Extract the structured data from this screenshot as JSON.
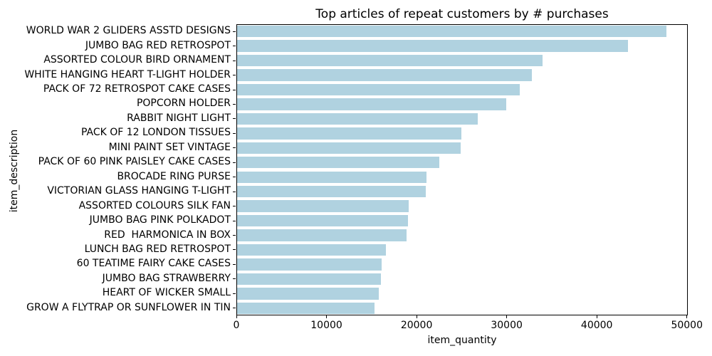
{
  "figure": {
    "background": "#ffffff",
    "text_color": "#000000",
    "spine_color": "#000000"
  },
  "chart_data": {
    "type": "bar",
    "orientation": "horizontal",
    "title": "Top articles of repeat customers by # purchases",
    "xlabel": "item_quantity",
    "ylabel": "item_description",
    "xlim": [
      0,
      50100
    ],
    "xticks": [
      0,
      10000,
      20000,
      30000,
      40000,
      50000
    ],
    "xtick_labels": [
      "0",
      "10000",
      "20000",
      "30000",
      "40000",
      "50000"
    ],
    "grid": false,
    "legend_position": "none",
    "bar_color": "#b0d2e0",
    "categories": [
      "WORLD WAR 2 GLIDERS ASSTD DESIGNS",
      "JUMBO BAG RED RETROSPOT",
      "ASSORTED COLOUR BIRD ORNAMENT",
      "WHITE HANGING HEART T-LIGHT HOLDER",
      "PACK OF 72 RETROSPOT CAKE CASES",
      "POPCORN HOLDER",
      "RABBIT NIGHT LIGHT",
      "PACK OF 12 LONDON TISSUES",
      "MINI PAINT SET VINTAGE",
      "PACK OF 60 PINK PAISLEY CAKE CASES",
      "BROCADE RING PURSE",
      "VICTORIAN GLASS HANGING T-LIGHT",
      "ASSORTED COLOURS SILK FAN",
      "JUMBO BAG PINK POLKADOT",
      "RED  HARMONICA IN BOX",
      "LUNCH BAG RED RETROSPOT",
      "60 TEATIME FAIRY CAKE CASES",
      "JUMBO BAG STRAWBERRY",
      "HEART OF WICKER SMALL",
      "GROW A FLYTRAP OR SUNFLOWER IN TIN"
    ],
    "values": [
      47800,
      43500,
      34000,
      32800,
      31500,
      30000,
      26800,
      25000,
      24900,
      22500,
      21100,
      21000,
      19100,
      19000,
      18900,
      16600,
      16100,
      16000,
      15800,
      15300
    ]
  }
}
